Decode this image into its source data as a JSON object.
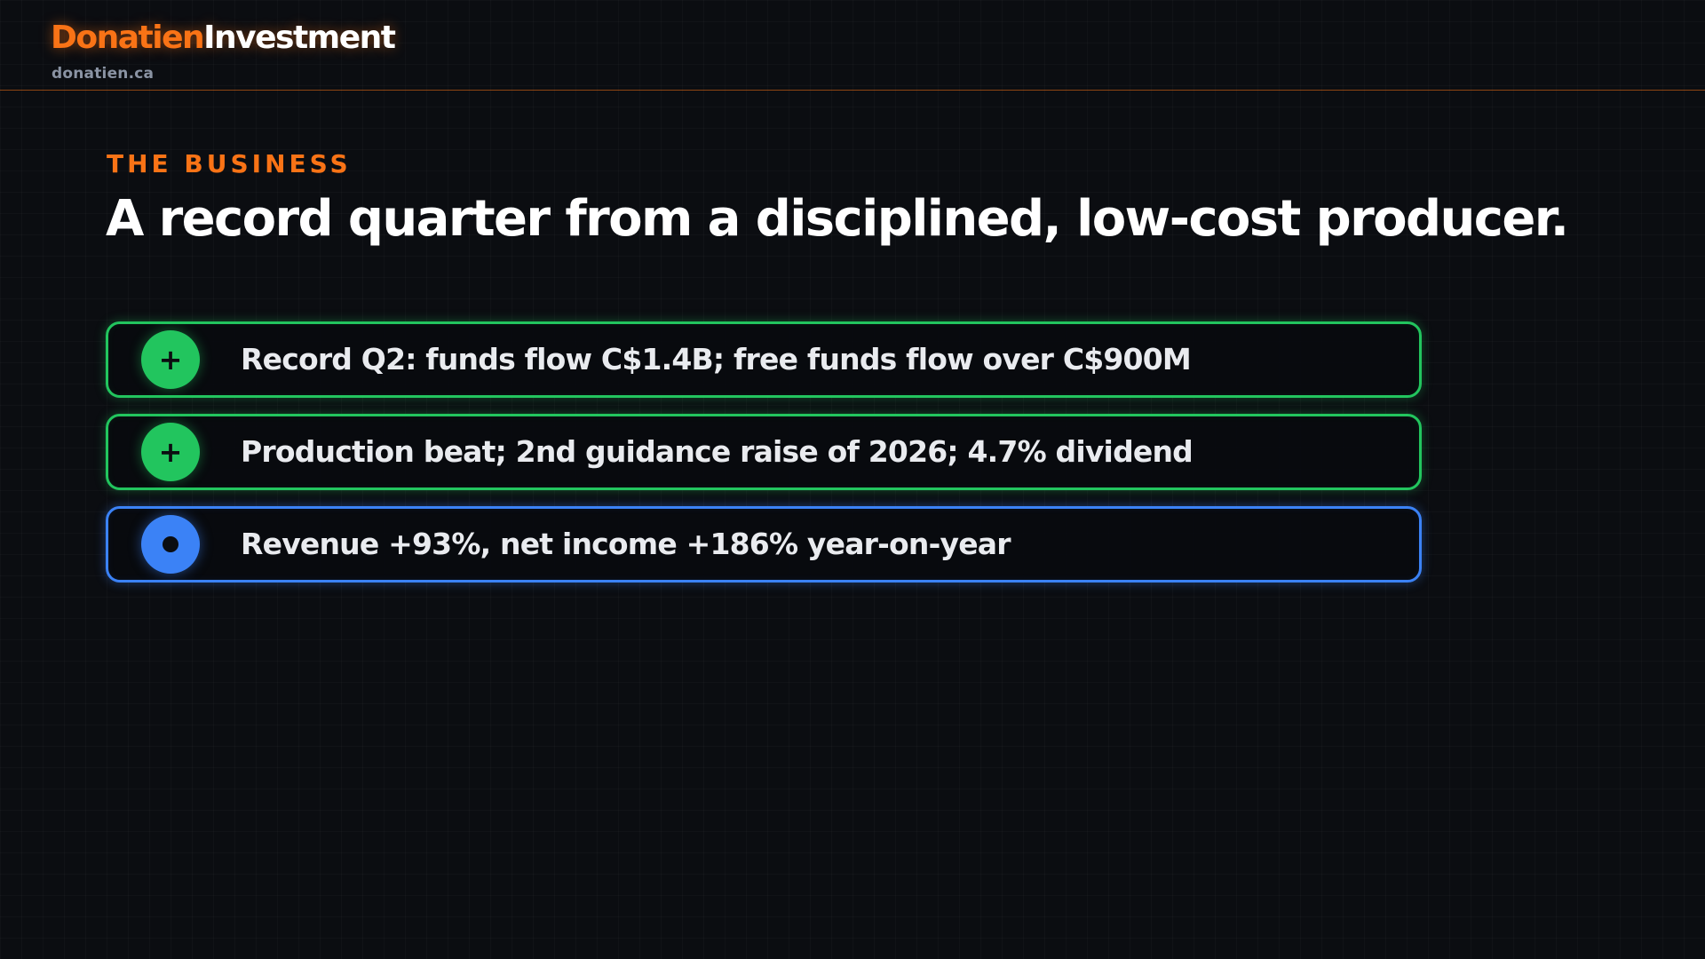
{
  "brand": {
    "name_accent": "Donatien",
    "name_main": "Investment",
    "domain": "donatien.ca",
    "accent_color": "#f97316"
  },
  "slide": {
    "eyebrow": "THE BUSINESS",
    "title": "A record quarter from a disciplined, low-cost producer."
  },
  "points": [
    {
      "icon": "plus-icon",
      "symbol": "+",
      "color": "#22c55e",
      "text": "Record Q2: funds flow C$1.4B; free funds flow over C$900M"
    },
    {
      "icon": "plus-icon",
      "symbol": "+",
      "color": "#22c55e",
      "text": "Production beat; 2nd guidance raise of 2026; 4.7% dividend"
    },
    {
      "icon": "dot-icon",
      "symbol": "",
      "color": "#3b82f6",
      "text": "Revenue +93%, net income +186% year-on-year"
    }
  ]
}
